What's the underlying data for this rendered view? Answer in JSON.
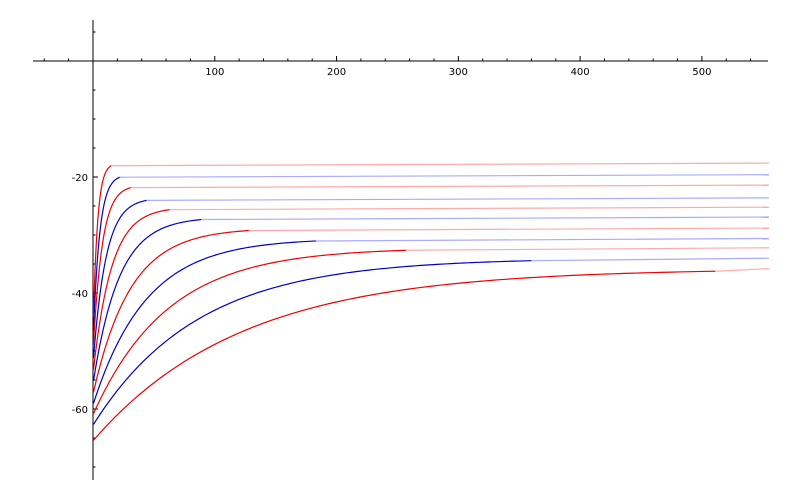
{
  "chart_data": {
    "type": "line",
    "title": "",
    "xlabel": "",
    "ylabel": "",
    "xlim": [
      -50,
      555
    ],
    "ylim": [
      -72,
      7
    ],
    "grid": false,
    "x_ticks": [
      100,
      200,
      300,
      400,
      500
    ],
    "y_ticks": [
      -20,
      -40,
      -60
    ],
    "colors": {
      "red": "#ee0000",
      "blue": "#0000cc",
      "pale_red": "#ffaaaa",
      "pale_blue": "#aaaaff"
    },
    "series": [
      {
        "color": "red",
        "y_start": -47.2,
        "x_end": 15,
        "y_final": -17.6,
        "x_line_end": 555
      },
      {
        "color": "blue",
        "y_start": -48.8,
        "x_end": 22,
        "y_final": -19.6,
        "x_line_end": 555
      },
      {
        "color": "red",
        "y_start": -50.5,
        "x_end": 31,
        "y_final": -21.4,
        "x_line_end": 555
      },
      {
        "color": "blue",
        "y_start": -52.3,
        "x_end": 44,
        "y_final": -23.6,
        "x_line_end": 555
      },
      {
        "color": "red",
        "y_start": -54.0,
        "x_end": 63,
        "y_final": -25.2,
        "x_line_end": 555
      },
      {
        "color": "blue",
        "y_start": -55.7,
        "x_end": 89,
        "y_final": -26.9,
        "x_line_end": 555
      },
      {
        "color": "red",
        "y_start": -57.5,
        "x_end": 128,
        "y_final": -28.8,
        "x_line_end": 555
      },
      {
        "color": "blue",
        "y_start": -59.3,
        "x_end": 183,
        "y_final": -30.6,
        "x_line_end": 555
      },
      {
        "color": "red",
        "y_start": -61.0,
        "x_end": 257,
        "y_final": -32.2,
        "x_line_end": 555
      },
      {
        "color": "blue",
        "y_start": -62.8,
        "x_end": 360,
        "y_final": -34.0,
        "x_line_end": 555
      },
      {
        "color": "red",
        "y_start": -65.5,
        "x_end": 511,
        "y_final": -35.8,
        "x_line_end": 555
      }
    ]
  }
}
